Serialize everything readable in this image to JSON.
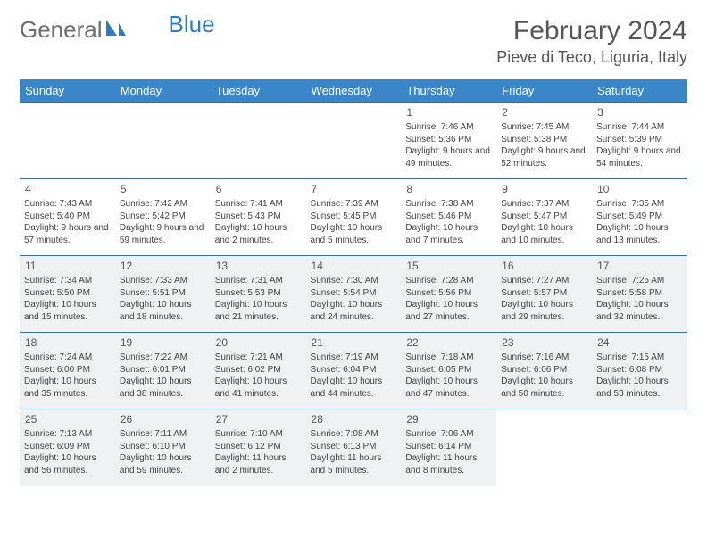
{
  "brand": {
    "part1": "General",
    "part2": "Blue"
  },
  "title": "February 2024",
  "location": "Pieve di Teco, Liguria, Italy",
  "colors": {
    "header_bg": "#3a86c8",
    "header_text": "#ffffff",
    "row_border": "#3a6b9e",
    "shaded_bg": "#eef0f1",
    "text": "#444444",
    "title_text": "#555555",
    "brand_gray": "#6d6d6d",
    "brand_blue": "#2f7bbf"
  },
  "day_headers": [
    "Sunday",
    "Monday",
    "Tuesday",
    "Wednesday",
    "Thursday",
    "Friday",
    "Saturday"
  ],
  "weeks": [
    [
      null,
      null,
      null,
      null,
      {
        "n": "1",
        "sr": "7:46 AM",
        "ss": "5:36 PM",
        "dl": "9 hours and 49 minutes."
      },
      {
        "n": "2",
        "sr": "7:45 AM",
        "ss": "5:38 PM",
        "dl": "9 hours and 52 minutes."
      },
      {
        "n": "3",
        "sr": "7:44 AM",
        "ss": "5:39 PM",
        "dl": "9 hours and 54 minutes."
      }
    ],
    [
      {
        "n": "4",
        "sr": "7:43 AM",
        "ss": "5:40 PM",
        "dl": "9 hours and 57 minutes."
      },
      {
        "n": "5",
        "sr": "7:42 AM",
        "ss": "5:42 PM",
        "dl": "9 hours and 59 minutes."
      },
      {
        "n": "6",
        "sr": "7:41 AM",
        "ss": "5:43 PM",
        "dl": "10 hours and 2 minutes."
      },
      {
        "n": "7",
        "sr": "7:39 AM",
        "ss": "5:45 PM",
        "dl": "10 hours and 5 minutes."
      },
      {
        "n": "8",
        "sr": "7:38 AM",
        "ss": "5:46 PM",
        "dl": "10 hours and 7 minutes."
      },
      {
        "n": "9",
        "sr": "7:37 AM",
        "ss": "5:47 PM",
        "dl": "10 hours and 10 minutes."
      },
      {
        "n": "10",
        "sr": "7:35 AM",
        "ss": "5:49 PM",
        "dl": "10 hours and 13 minutes."
      }
    ],
    [
      {
        "n": "11",
        "sr": "7:34 AM",
        "ss": "5:50 PM",
        "dl": "10 hours and 15 minutes."
      },
      {
        "n": "12",
        "sr": "7:33 AM",
        "ss": "5:51 PM",
        "dl": "10 hours and 18 minutes."
      },
      {
        "n": "13",
        "sr": "7:31 AM",
        "ss": "5:53 PM",
        "dl": "10 hours and 21 minutes."
      },
      {
        "n": "14",
        "sr": "7:30 AM",
        "ss": "5:54 PM",
        "dl": "10 hours and 24 minutes."
      },
      {
        "n": "15",
        "sr": "7:28 AM",
        "ss": "5:56 PM",
        "dl": "10 hours and 27 minutes."
      },
      {
        "n": "16",
        "sr": "7:27 AM",
        "ss": "5:57 PM",
        "dl": "10 hours and 29 minutes."
      },
      {
        "n": "17",
        "sr": "7:25 AM",
        "ss": "5:58 PM",
        "dl": "10 hours and 32 minutes."
      }
    ],
    [
      {
        "n": "18",
        "sr": "7:24 AM",
        "ss": "6:00 PM",
        "dl": "10 hours and 35 minutes."
      },
      {
        "n": "19",
        "sr": "7:22 AM",
        "ss": "6:01 PM",
        "dl": "10 hours and 38 minutes."
      },
      {
        "n": "20",
        "sr": "7:21 AM",
        "ss": "6:02 PM",
        "dl": "10 hours and 41 minutes."
      },
      {
        "n": "21",
        "sr": "7:19 AM",
        "ss": "6:04 PM",
        "dl": "10 hours and 44 minutes."
      },
      {
        "n": "22",
        "sr": "7:18 AM",
        "ss": "6:05 PM",
        "dl": "10 hours and 47 minutes."
      },
      {
        "n": "23",
        "sr": "7:16 AM",
        "ss": "6:06 PM",
        "dl": "10 hours and 50 minutes."
      },
      {
        "n": "24",
        "sr": "7:15 AM",
        "ss": "6:08 PM",
        "dl": "10 hours and 53 minutes."
      }
    ],
    [
      {
        "n": "25",
        "sr": "7:13 AM",
        "ss": "6:09 PM",
        "dl": "10 hours and 56 minutes."
      },
      {
        "n": "26",
        "sr": "7:11 AM",
        "ss": "6:10 PM",
        "dl": "10 hours and 59 minutes."
      },
      {
        "n": "27",
        "sr": "7:10 AM",
        "ss": "6:12 PM",
        "dl": "11 hours and 2 minutes."
      },
      {
        "n": "28",
        "sr": "7:08 AM",
        "ss": "6:13 PM",
        "dl": "11 hours and 5 minutes."
      },
      {
        "n": "29",
        "sr": "7:06 AM",
        "ss": "6:14 PM",
        "dl": "11 hours and 8 minutes."
      },
      null,
      null
    ]
  ],
  "shaded_rows": [
    2,
    3,
    4
  ],
  "labels": {
    "sunrise": "Sunrise: ",
    "sunset": "Sunset: ",
    "daylight": "Daylight: "
  }
}
